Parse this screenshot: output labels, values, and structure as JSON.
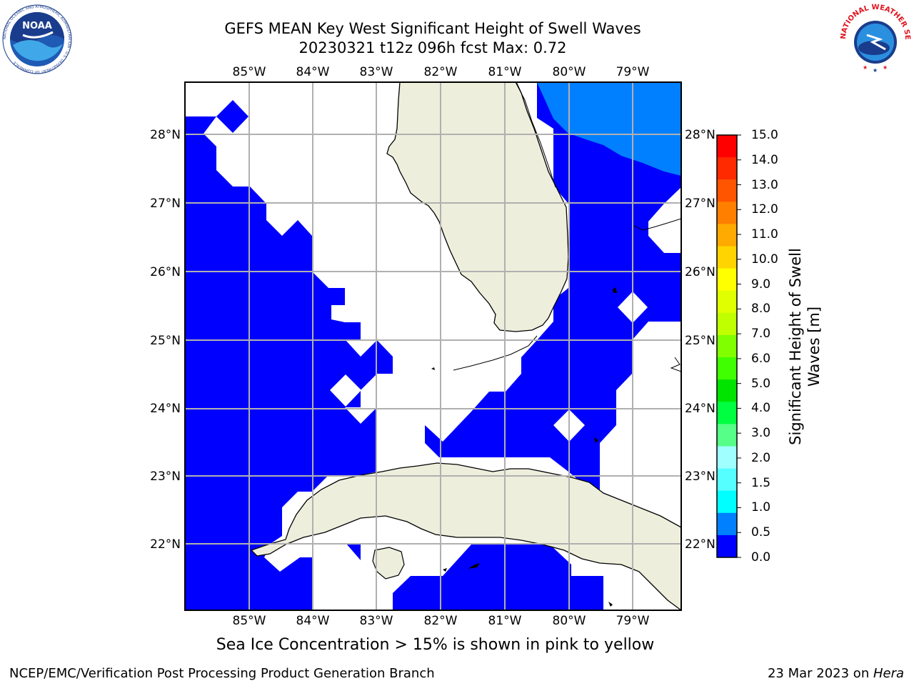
{
  "title_line1": "GEFS MEAN Key West Significant Height of Swell Waves",
  "title_line2": "20230321 t12z 096h fcst   Max: 0.72",
  "lon_labels": [
    "85°W",
    "84°W",
    "83°W",
    "82°W",
    "81°W",
    "80°W",
    "79°W"
  ],
  "lat_labels": [
    "28°N",
    "27°N",
    "26°N",
    "25°N",
    "24°N",
    "23°N",
    "22°N"
  ],
  "colorbar": {
    "label": "Significant Height of Swell Waves [m]",
    "ticks": [
      "15.0",
      "14.0",
      "13.0",
      "12.0",
      "11.0",
      "10.0",
      "9.0",
      "8.0",
      "7.0",
      "6.0",
      "5.0",
      "4.0",
      "3.0",
      "2.0",
      "1.5",
      "1.0",
      "0.5",
      "0.0"
    ],
    "colors": [
      "#ff0000",
      "#ff2a00",
      "#ff5500",
      "#ff7f00",
      "#ffaa00",
      "#ffd400",
      "#ffff00",
      "#e0ff00",
      "#bfff00",
      "#80ff00",
      "#40ff00",
      "#00e400",
      "#00ff40",
      "#55ff88",
      "#a0ffff",
      "#55ffff",
      "#00ffff",
      "#0080ff",
      "#0000ff"
    ]
  },
  "note": "Sea Ice Concentration > 15% is shown in pink to yellow",
  "footer_left": "NCEP/EMC/Verification Post Processing Product Generation Branch",
  "footer_date": "23 Mar 2023 on ",
  "footer_host": "Hera",
  "logos": {
    "noaa_text": "NOAA",
    "noaa_ring": "NATIONAL OCEANIC AND ATMOSPHERIC ADMINISTRATION · U.S. DEPARTMENT OF COMMERCE",
    "nws_ring": "NATIONAL WEATHER SERVICE"
  },
  "map_colors": {
    "ocean_low": "#0000ff",
    "ocean_mid": "#0080ff",
    "land": "#eeeedd",
    "grid": "#b0b0b0"
  }
}
